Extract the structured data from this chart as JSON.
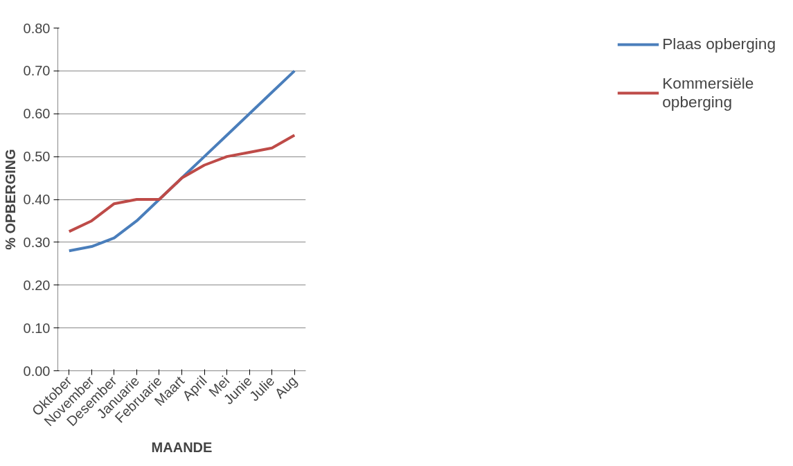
{
  "chart_data": {
    "type": "line",
    "xlabel": "MAANDE",
    "ylabel": "% OPBERGING",
    "categories": [
      "Oktober",
      "November",
      "Desember",
      "Januarie",
      "Februarie",
      "Maart",
      "April",
      "Mei",
      "Junie",
      "Julie",
      "Aug"
    ],
    "series": [
      {
        "name": "Plaas opberging",
        "color": "#4a7ebb",
        "values": [
          0.28,
          0.29,
          0.31,
          0.35,
          0.4,
          0.45,
          0.5,
          0.55,
          0.6,
          0.65,
          0.7
        ]
      },
      {
        "name": "Kommersiële opberging",
        "color": "#be4b48",
        "values": [
          0.325,
          0.35,
          0.39,
          0.4,
          0.4,
          0.45,
          0.48,
          0.5,
          0.51,
          0.52,
          0.55
        ]
      }
    ],
    "ylim": [
      0,
      0.8
    ],
    "yticks": [
      {
        "value": 0,
        "label": "0.00"
      },
      {
        "value": 0.1,
        "label": "0.10"
      },
      {
        "value": 0.2,
        "label": "0.20"
      },
      {
        "value": 0.3,
        "label": "0.30"
      },
      {
        "value": 0.4,
        "label": "0.40"
      },
      {
        "value": 0.5,
        "label": "0.50"
      },
      {
        "value": 0.6,
        "label": "0.60"
      },
      {
        "value": 0.7,
        "label": "0.70"
      },
      {
        "value": 0.8,
        "label": "0.80"
      }
    ],
    "grid": "y",
    "legend": "right",
    "marker": "none",
    "line_style": "solid"
  }
}
